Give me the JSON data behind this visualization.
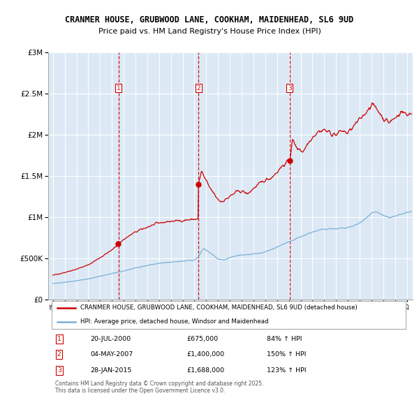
{
  "title_line1": "CRANMER HOUSE, GRUBWOOD LANE, COOKHAM, MAIDENHEAD, SL6 9UD",
  "title_line2": "Price paid vs. HM Land Registry's House Price Index (HPI)",
  "bg_color": "#dce9f5",
  "red_line_color": "#cc0000",
  "blue_line_color": "#7aafd4",
  "purchases": [
    {
      "date_num": 2000.55,
      "price": 675000,
      "label": "1"
    },
    {
      "date_num": 2007.34,
      "price": 1400000,
      "label": "2"
    },
    {
      "date_num": 2015.07,
      "price": 1688000,
      "label": "3"
    }
  ],
  "legend_entries": [
    "CRANMER HOUSE, GRUBWOOD LANE, COOKHAM, MAIDENHEAD, SL6 9UD (detached house)",
    "HPI: Average price, detached house, Windsor and Maidenhead"
  ],
  "table_rows": [
    {
      "num": "1",
      "date": "20-JUL-2000",
      "price": "£675,000",
      "pct": "84% ↑ HPI"
    },
    {
      "num": "2",
      "date": "04-MAY-2007",
      "price": "£1,400,000",
      "pct": "150% ↑ HPI"
    },
    {
      "num": "3",
      "date": "28-JAN-2015",
      "price": "£1,688,000",
      "pct": "123% ↑ HPI"
    }
  ],
  "footer": "Contains HM Land Registry data © Crown copyright and database right 2025.\nThis data is licensed under the Open Government Licence v3.0.",
  "ylim": [
    0,
    3000000
  ],
  "xlim_start": 1994.6,
  "xlim_end": 2025.5,
  "yticks": [
    0,
    500000,
    1000000,
    1500000,
    2000000,
    2500000,
    3000000
  ]
}
